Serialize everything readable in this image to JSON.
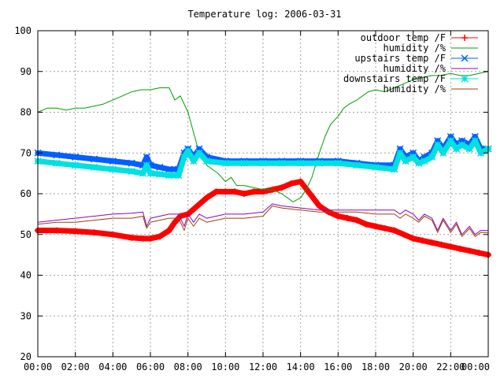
{
  "chart_data": {
    "type": "line",
    "title": "Temperature log: 2006-03-31",
    "xlabel": "",
    "ylabel": "",
    "xlim": [
      0,
      24
    ],
    "ylim": [
      20,
      100
    ],
    "x_ticks": [
      "00:00",
      "02:00",
      "04:00",
      "06:00",
      "08:00",
      "10:00",
      "12:00",
      "14:00",
      "16:00",
      "18:00",
      "20:00",
      "22:00",
      "00:00"
    ],
    "y_ticks": [
      "20",
      "30",
      "40",
      "50",
      "60",
      "70",
      "80",
      "90",
      "100"
    ],
    "grid": true,
    "legend_position": "top-right",
    "series": [
      {
        "name": "outdoor temp /F",
        "color": "#ff0000",
        "marker": "plus",
        "x": [
          0,
          1,
          2,
          3,
          4,
          5,
          5.6,
          6,
          6.5,
          7,
          7.3,
          7.6,
          8,
          8.5,
          9,
          9.5,
          10,
          10.5,
          11,
          11.5,
          12,
          12.5,
          13,
          13.5,
          14,
          14.5,
          15,
          15.5,
          16,
          16.5,
          17,
          17.5,
          18,
          18.5,
          19,
          19.5,
          20,
          20.5,
          21,
          21.5,
          22,
          22.5,
          23,
          23.5,
          24
        ],
        "values": [
          51,
          51,
          50.8,
          50.5,
          50,
          49.2,
          49,
          49,
          49.5,
          51,
          53,
          54.5,
          55,
          57,
          59,
          60.5,
          60.5,
          60.5,
          60,
          60.5,
          60.5,
          61,
          61.5,
          62.5,
          63,
          60,
          57,
          55.5,
          54.5,
          54,
          53.5,
          52.5,
          52,
          51.5,
          51,
          50,
          49,
          48.5,
          48,
          47.5,
          47,
          46.5,
          46,
          45.5,
          45
        ]
      },
      {
        "name": "humidity /%",
        "color": "#00a000",
        "marker": "none",
        "x": [
          0,
          0.5,
          1,
          1.5,
          2,
          2.5,
          3,
          3.5,
          4,
          4.5,
          5,
          5.5,
          6,
          6.5,
          7,
          7.3,
          7.6,
          8,
          8.3,
          8.6,
          9,
          9.3,
          9.6,
          10,
          10.3,
          10.6,
          11,
          11.5,
          12,
          12.5,
          13,
          13.3,
          13.6,
          14,
          14.3,
          14.6,
          15,
          15.3,
          15.6,
          16,
          16.3,
          16.6,
          17,
          17.3,
          17.6,
          18,
          18.5,
          19,
          19.5,
          20,
          20.5,
          21,
          21.5,
          22,
          22.5,
          23,
          23.5,
          24
        ],
        "values": [
          80,
          81,
          81,
          80.5,
          81,
          81,
          81.5,
          82,
          83,
          84,
          85,
          85.5,
          85.5,
          86,
          86,
          83,
          84,
          80,
          75,
          70,
          67,
          66,
          65,
          63,
          64,
          62,
          62,
          61.5,
          61,
          61,
          60,
          59,
          58,
          59,
          61,
          64,
          70,
          74,
          77,
          79,
          81,
          82,
          83,
          84,
          85,
          85.5,
          85,
          86,
          87,
          88,
          88.5,
          89,
          89,
          89.5,
          89,
          89,
          89.5,
          90
        ]
      },
      {
        "name": "upstairs temp /F",
        "color": "#0060ff",
        "marker": "cross",
        "x": [
          0,
          1,
          2,
          3,
          4,
          5,
          5.6,
          5.8,
          6,
          6.5,
          7,
          7.5,
          7.8,
          8,
          8.3,
          8.6,
          9,
          10,
          11,
          12,
          13,
          14,
          15,
          16,
          17,
          18,
          19,
          19.3,
          19.6,
          20,
          20.3,
          20.6,
          21,
          21.3,
          21.6,
          22,
          22.3,
          22.6,
          23,
          23.3,
          23.6,
          24
        ],
        "values": [
          70,
          69.5,
          69,
          68.5,
          68,
          67.5,
          67,
          69,
          67,
          66.5,
          66,
          66,
          70,
          71,
          69,
          71,
          69,
          68,
          68,
          68,
          68,
          68,
          68,
          68,
          67.5,
          67,
          67,
          71,
          69,
          70,
          68,
          69,
          70,
          73,
          71,
          74,
          72,
          73,
          72,
          74,
          71,
          71
        ]
      },
      {
        "name": "humidity /%",
        "color": "#9000c0",
        "marker": "none",
        "x": [
          0,
          1,
          2,
          3,
          4,
          5,
          5.6,
          5.8,
          6,
          6.5,
          7,
          7.5,
          7.8,
          8,
          8.3,
          8.6,
          9,
          10,
          11,
          12,
          12.5,
          13,
          14,
          15,
          16,
          17,
          18,
          19,
          19.3,
          19.6,
          20,
          20.3,
          20.6,
          21,
          21.3,
          21.6,
          22,
          22.3,
          22.6,
          23,
          23.3,
          23.6,
          24
        ],
        "values": [
          53,
          53.5,
          54,
          54.5,
          55,
          55.2,
          55.5,
          52,
          54,
          54.5,
          55,
          55,
          52,
          55,
          53,
          55,
          54,
          55,
          55,
          55.5,
          57.5,
          57,
          56.5,
          56,
          56,
          56,
          56,
          56,
          55,
          56,
          55,
          53.5,
          55,
          54,
          51,
          54,
          51,
          53,
          50,
          52,
          50,
          51,
          51
        ]
      },
      {
        "name": "downstairs temp /F",
        "color": "#00e0e0",
        "marker": "star",
        "x": [
          0,
          1,
          2,
          3,
          4,
          5,
          5.6,
          5.8,
          6,
          6.5,
          7,
          7.5,
          7.8,
          8,
          8.3,
          8.6,
          9,
          10,
          11,
          12,
          13,
          14,
          15,
          16,
          17,
          18,
          19,
          19.3,
          19.6,
          20,
          20.3,
          20.6,
          21,
          21.3,
          21.6,
          22,
          22.3,
          22.6,
          23,
          23.3,
          23.6,
          24
        ],
        "values": [
          68,
          67.5,
          67,
          66.5,
          66,
          65.5,
          65,
          67,
          65,
          64.8,
          64.5,
          64.5,
          69,
          70.5,
          68,
          70,
          68,
          67.5,
          67.5,
          67.5,
          67.5,
          67.5,
          67.5,
          67.5,
          67,
          66.5,
          66,
          70,
          68,
          69,
          67.5,
          68,
          69,
          72,
          70,
          73,
          71,
          72,
          71,
          73,
          70,
          71
        ]
      },
      {
        "name": "humidity /%",
        "color": "#a04000",
        "marker": "none",
        "x": [
          0,
          1,
          2,
          3,
          4,
          5,
          5.6,
          5.8,
          6,
          6.5,
          7,
          7.5,
          7.8,
          8,
          8.3,
          8.6,
          9,
          10,
          11,
          12,
          12.5,
          13,
          14,
          15,
          16,
          17,
          18,
          19,
          19.3,
          19.6,
          20,
          20.3,
          20.6,
          21,
          21.3,
          21.6,
          22,
          22.3,
          22.6,
          23,
          23.3,
          23.6,
          24
        ],
        "values": [
          52.5,
          53,
          53,
          53.5,
          54,
          54,
          54.5,
          51.5,
          53,
          53.5,
          54,
          54,
          51,
          54,
          52,
          54,
          53,
          54,
          54,
          54.5,
          57,
          56.5,
          56,
          55.5,
          55.5,
          55.5,
          55,
          55,
          54,
          55,
          54,
          53,
          54.5,
          53.5,
          50.5,
          53.5,
          50.5,
          52.5,
          49.5,
          51.5,
          49.5,
          50.5,
          50.5
        ]
      }
    ]
  }
}
